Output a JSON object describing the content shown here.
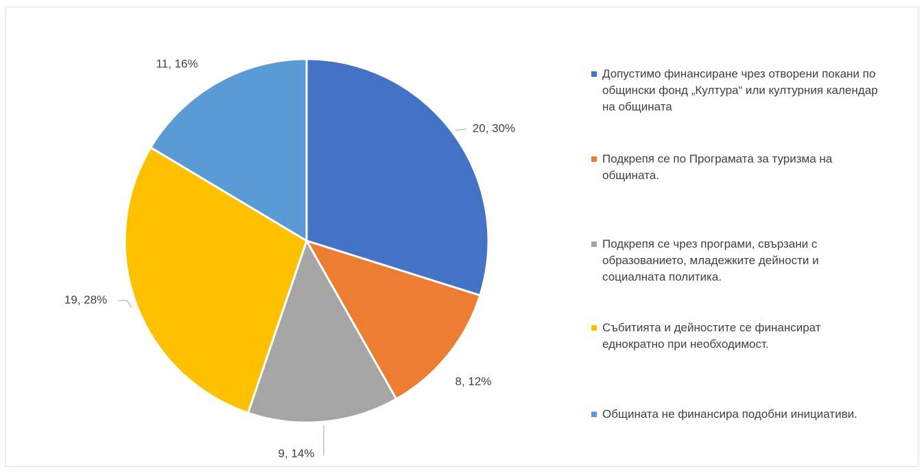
{
  "chart_data": {
    "type": "pie",
    "categories": [
      "Допустимо финансиране чрез отворени покани по общински фонд „Култура“ или културния календар на общината",
      "Подкрепя се по Програмата за туризма на общината.",
      "Подкрепя се чрез програми, свързани с образованието, младежките дейности и социалната политика.",
      "Събитията и дейностите се финансират еднократно при необходимост.",
      "Общината не финансира подобни инициативи."
    ],
    "values": [
      20,
      8,
      9,
      19,
      11
    ],
    "value_labels": [
      "20, 30%",
      "8, 12%",
      "9, 14%",
      "19, 28%",
      "11, 16%"
    ],
    "colors": [
      "#4472c4",
      "#ed7d31",
      "#a5a5a5",
      "#ffc000",
      "#5b9bd5"
    ],
    "legend": "right"
  }
}
